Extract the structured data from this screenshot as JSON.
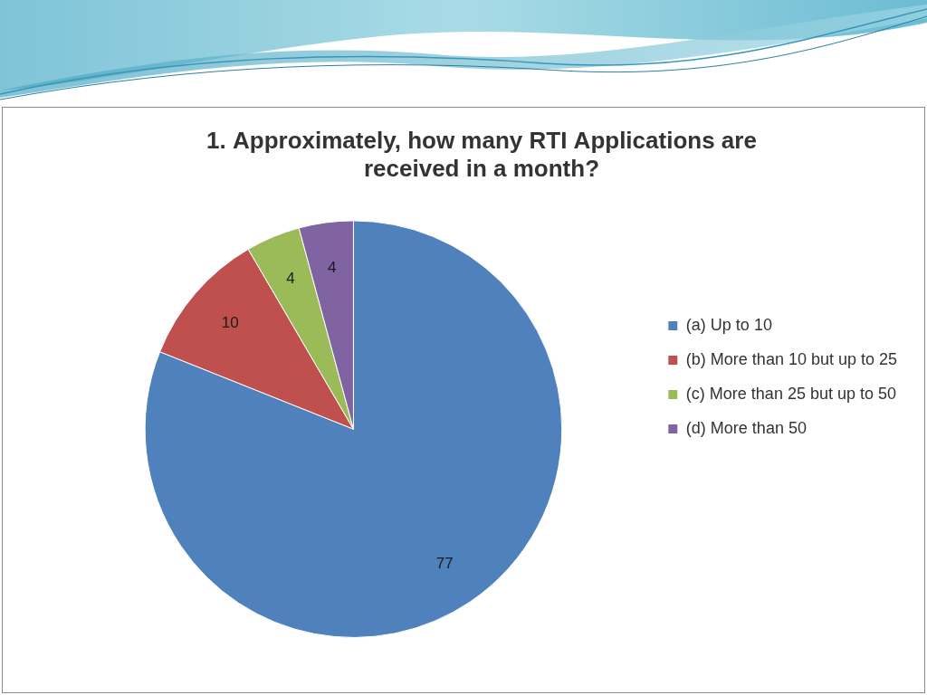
{
  "chart_data": {
    "type": "pie",
    "title": "1. Approximately, how many RTI Applications are received in a month?",
    "categories": [
      "(a) Up to 10",
      "(b) More than 10 but up to 25",
      "(c) More than 25 but up to 50",
      "(d) More than 50"
    ],
    "values": [
      77,
      10,
      4,
      4
    ],
    "colors": [
      "#4f81bd",
      "#c0504d",
      "#9bbb59",
      "#8064a2"
    ],
    "legend": "right",
    "data_labels": true
  }
}
